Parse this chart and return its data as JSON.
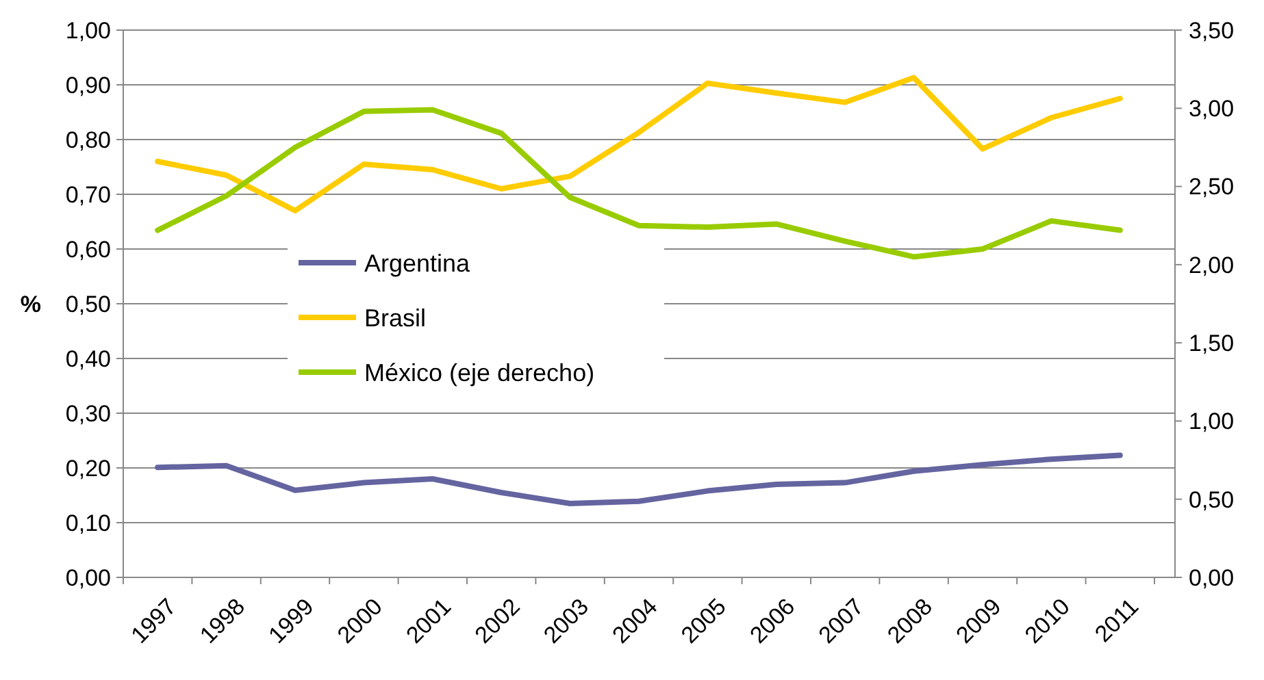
{
  "chart_data": {
    "type": "line",
    "ylabel": "%",
    "categories": [
      "1997",
      "1998",
      "1999",
      "2000",
      "2001",
      "2002",
      "2003",
      "2004",
      "2005",
      "2006",
      "2007",
      "2008",
      "2009",
      "2010",
      "2011"
    ],
    "series": [
      {
        "name": "Argentina",
        "color": "#6464a0",
        "values": [
          0.201,
          0.204,
          0.159,
          0.173,
          0.18,
          0.155,
          0.135,
          0.139,
          0.158,
          0.17,
          0.173,
          0.194,
          0.206,
          0.216,
          0.223
        ]
      },
      {
        "name": "Brasil",
        "color": "#ffcc00",
        "values": [
          0.76,
          0.735,
          0.67,
          0.755,
          0.745,
          0.71,
          0.733,
          0.813,
          0.903,
          0.885,
          0.868,
          0.913,
          0.783,
          0.84,
          0.875
        ]
      },
      {
        "name": "México (eje derecho)",
        "color": "#99cc00",
        "axis": "y2",
        "values": [
          2.22,
          2.44,
          2.75,
          2.98,
          2.99,
          2.84,
          2.43,
          2.25,
          2.24,
          2.26,
          2.15,
          2.05,
          2.1,
          2.28,
          2.22
        ]
      }
    ],
    "ylim": [
      0,
      1
    ],
    "yticks": [
      {
        "value": 0,
        "label": "0,00"
      },
      {
        "value": 0.1,
        "label": "0,10"
      },
      {
        "value": 0.2,
        "label": "0,20"
      },
      {
        "value": 0.3,
        "label": "0,30"
      },
      {
        "value": 0.4,
        "label": "0,40"
      },
      {
        "value": 0.5,
        "label": "0,50"
      },
      {
        "value": 0.6,
        "label": "0,60"
      },
      {
        "value": 0.7,
        "label": "0,70"
      },
      {
        "value": 0.8,
        "label": "0,80"
      },
      {
        "value": 0.9,
        "label": "0,90"
      },
      {
        "value": 1,
        "label": "1,00"
      }
    ],
    "y2lim": [
      0,
      3.5
    ],
    "y2ticks": [
      {
        "value": 0,
        "label": "0,00"
      },
      {
        "value": 0.5,
        "label": "0,50"
      },
      {
        "value": 1,
        "label": "1,00"
      },
      {
        "value": 1.5,
        "label": "1,50"
      },
      {
        "value": 2,
        "label": "2,00"
      },
      {
        "value": 2.5,
        "label": "2,50"
      },
      {
        "value": 3,
        "label": "3,00"
      },
      {
        "value": 3.5,
        "label": "3,50"
      }
    ],
    "grid": "y",
    "legend": "center",
    "marker": "none",
    "line_style": "solid"
  }
}
